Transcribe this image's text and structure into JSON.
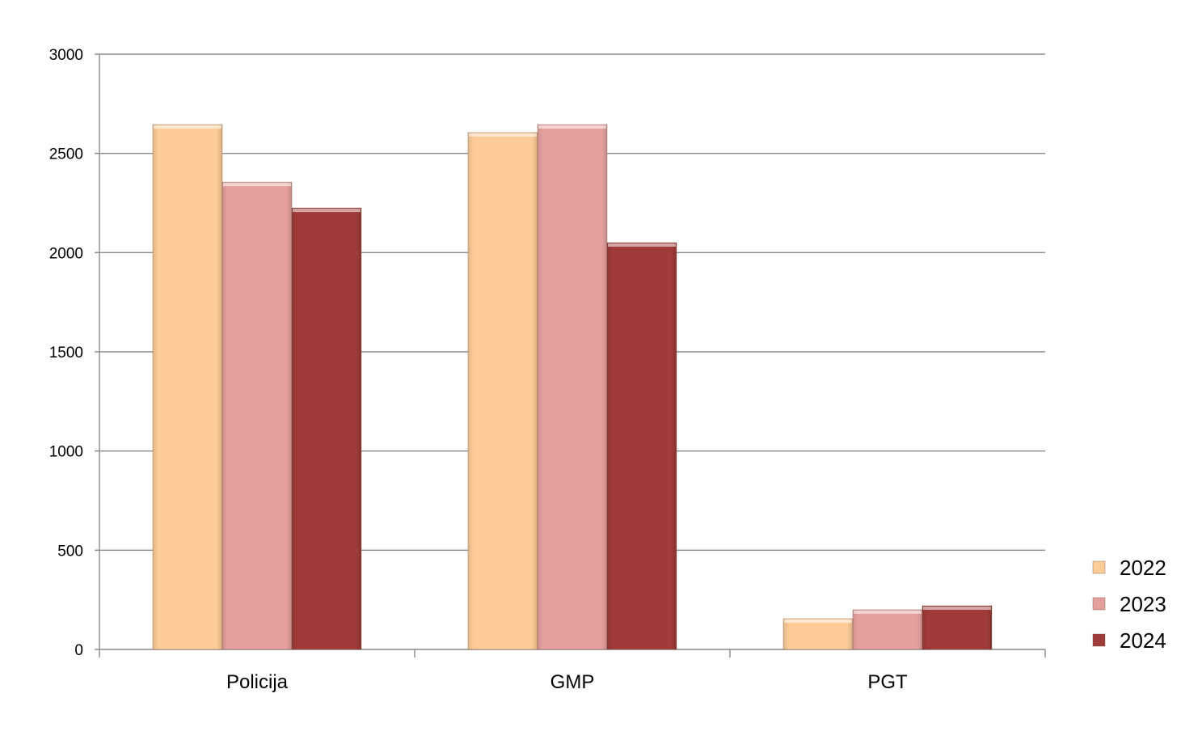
{
  "chart_data": {
    "type": "bar",
    "categories": [
      "Policija",
      "GMP",
      "PGT"
    ],
    "series": [
      {
        "name": "2022",
        "values": [
          2645,
          2605,
          155
        ],
        "color": "#fccb97"
      },
      {
        "name": "2023",
        "values": [
          2355,
          2645,
          200
        ],
        "color": "#e5a09e"
      },
      {
        "name": "2024",
        "values": [
          2225,
          2050,
          220
        ],
        "color": "#a03b3a"
      }
    ],
    "ylim": [
      0,
      3000
    ],
    "yticks": [
      0,
      500,
      1000,
      1500,
      2000,
      2500,
      3000
    ],
    "grid": true,
    "legend_position": "bottom-right",
    "title": "",
    "xlabel": "",
    "ylabel": ""
  }
}
